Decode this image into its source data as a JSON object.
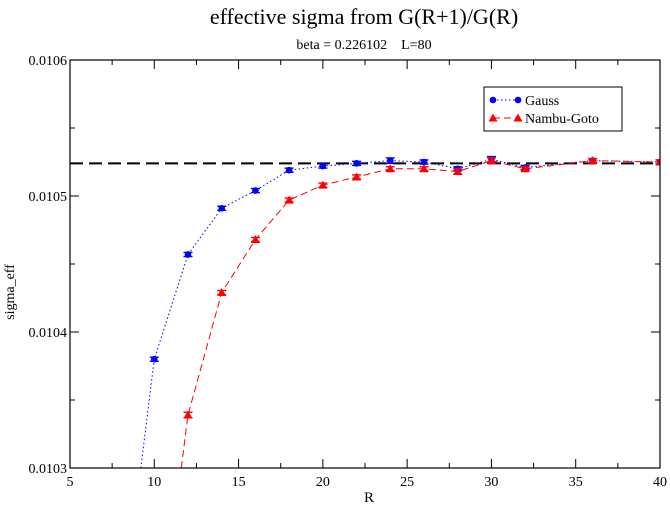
{
  "chart_data": {
    "type": "line",
    "title": "effective sigma from G(R+1)/G(R)",
    "subtitle": "beta = 0.226102    L=80",
    "xlabel": "R",
    "ylabel": "sigma_eff",
    "xlim": [
      5,
      40
    ],
    "ylim": [
      0.0103,
      0.0106
    ],
    "x_ticks": [
      5,
      10,
      15,
      20,
      25,
      30,
      35,
      40
    ],
    "x_tick_labels": [
      "5",
      "10",
      "15",
      "20",
      "25",
      "30",
      "35",
      "40"
    ],
    "y_ticks": [
      0.0103,
      0.0104,
      0.0105,
      0.0106
    ],
    "y_tick_labels": [
      "0.0103",
      "0.0104",
      "0.0105",
      "0.0106"
    ],
    "reference_line": {
      "y": 0.010524,
      "style": "dashed",
      "color": "#000000"
    },
    "legend_position": "top-right",
    "series": [
      {
        "name": "Gauss",
        "color": "#0000ff",
        "marker": "circle",
        "line_style": "dotted",
        "curve_start": [
          9.2,
          0.0103
        ],
        "x": [
          10,
          12,
          14,
          16,
          18,
          20,
          22,
          24,
          26,
          28,
          30,
          32,
          36,
          40
        ],
        "values": [
          0.01038,
          0.010457,
          0.010491,
          0.010504,
          0.010519,
          0.010522,
          0.010524,
          0.010526,
          0.010525,
          0.01052,
          0.010527,
          0.010521,
          0.010526,
          0.010525
        ],
        "errors": [
          1.5e-06,
          1.5e-06,
          1.5e-06,
          1.5e-06,
          1.5e-06,
          1.5e-06,
          1.5e-06,
          2e-06,
          1.5e-06,
          1.5e-06,
          2e-06,
          1.5e-06,
          1.5e-06,
          1.5e-06
        ]
      },
      {
        "name": "Nambu-Goto",
        "color": "#ff0000",
        "marker": "triangle",
        "line_style": "dashed",
        "curve_start": [
          11.6,
          0.0103
        ],
        "x": [
          12,
          14,
          16,
          18,
          20,
          22,
          24,
          26,
          28,
          30,
          32,
          36,
          40
        ],
        "values": [
          0.010339,
          0.010429,
          0.010468,
          0.010497,
          0.010508,
          0.010514,
          0.01052,
          0.01052,
          0.010518,
          0.010526,
          0.01052,
          0.010526,
          0.010525
        ],
        "errors": [
          2e-06,
          1.5e-06,
          1.5e-06,
          1.5e-06,
          1.5e-06,
          1.5e-06,
          1.5e-06,
          1.5e-06,
          2e-06,
          2e-06,
          1.5e-06,
          1.5e-06,
          1.5e-06
        ]
      }
    ]
  }
}
